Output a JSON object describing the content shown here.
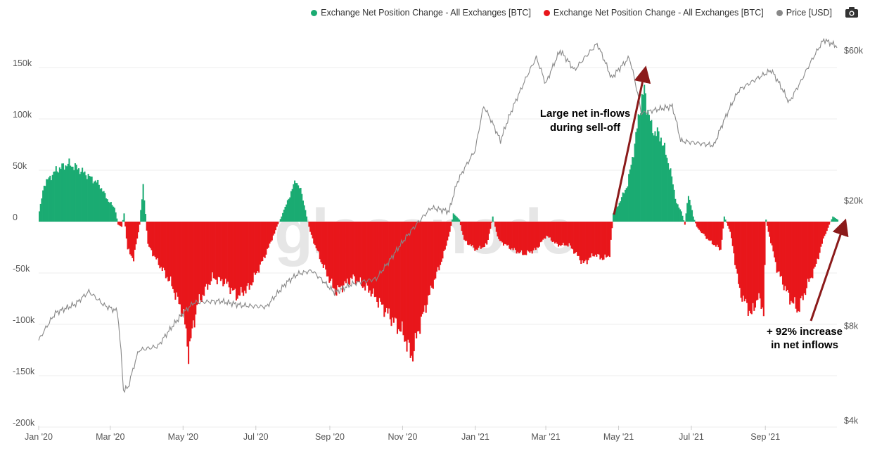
{
  "legend": {
    "items": [
      {
        "label": "Exchange Net Position Change - All Exchanges [BTC]",
        "color": "#1aab72"
      },
      {
        "label": "Exchange Net Position Change - All Exchanges [BTC]",
        "color": "#e8161b"
      },
      {
        "label": "Price [USD]",
        "color": "#888888"
      }
    ]
  },
  "watermark": "glassnode",
  "annotations": {
    "inflows_line1": "Large net in-flows",
    "inflows_line2": "during sell-off",
    "increase_line1": "+ 92% increase",
    "increase_line2": "in net inflows"
  },
  "colors": {
    "positive": "#1aab72",
    "negative": "#e8161b",
    "price": "#888888",
    "arrow": "#8b1a1a"
  },
  "chart_data": {
    "type": "bar",
    "title": "",
    "xlabel": "",
    "ylabel": "",
    "ylim": [
      -200000,
      175000
    ],
    "y2lim_log": [
      4000,
      80000
    ],
    "x_start": "2020-01-01",
    "x_end": "2021-10-31",
    "y_ticks": [
      {
        "value": 150000,
        "label": "150k"
      },
      {
        "value": 100000,
        "label": "100k"
      },
      {
        "value": 50000,
        "label": "50k"
      },
      {
        "value": 0,
        "label": "0"
      },
      {
        "value": -50000,
        "label": "-50k"
      },
      {
        "value": -100000,
        "label": "-100k"
      },
      {
        "value": -150000,
        "label": "-150k"
      },
      {
        "value": -200000,
        "label": "-200k"
      }
    ],
    "y2_ticks": [
      {
        "value": 60000,
        "label": "$60k"
      },
      {
        "value": 20000,
        "label": "$20k"
      },
      {
        "value": 8000,
        "label": "$8k"
      },
      {
        "value": 4000,
        "label": "$4k"
      }
    ],
    "x_ticks": [
      {
        "date": "2020-01-01",
        "label": "Jan '20"
      },
      {
        "date": "2020-03-01",
        "label": "Mar '20"
      },
      {
        "date": "2020-05-01",
        "label": "May '20"
      },
      {
        "date": "2020-07-01",
        "label": "Jul '20"
      },
      {
        "date": "2020-09-01",
        "label": "Sep '20"
      },
      {
        "date": "2020-11-01",
        "label": "Nov '20"
      },
      {
        "date": "2021-01-01",
        "label": "Jan '21"
      },
      {
        "date": "2021-03-01",
        "label": "Mar '21"
      },
      {
        "date": "2021-05-01",
        "label": "May '21"
      },
      {
        "date": "2021-07-01",
        "label": "Jul '21"
      },
      {
        "date": "2021-09-01",
        "label": "Sep '21"
      }
    ],
    "series": [
      {
        "name": "Exchange Net Position Change - All Exchanges [BTC]",
        "unit": "BTC",
        "anchors": [
          [
            "2020-01-01",
            10000
          ],
          [
            "2020-01-05",
            40000
          ],
          [
            "2020-01-15",
            55000
          ],
          [
            "2020-01-25",
            62000
          ],
          [
            "2020-02-01",
            58000
          ],
          [
            "2020-02-10",
            50000
          ],
          [
            "2020-02-20",
            40000
          ],
          [
            "2020-02-28",
            22000
          ],
          [
            "2020-03-04",
            15000
          ],
          [
            "2020-03-07",
            -3000
          ],
          [
            "2020-03-10",
            -5000
          ],
          [
            "2020-03-12",
            8000
          ],
          [
            "2020-03-15",
            -30000
          ],
          [
            "2020-03-20",
            -40000
          ],
          [
            "2020-03-25",
            -3000
          ],
          [
            "2020-03-28",
            40000
          ],
          [
            "2020-04-01",
            -25000
          ],
          [
            "2020-04-10",
            -45000
          ],
          [
            "2020-04-20",
            -65000
          ],
          [
            "2020-05-01",
            -100000
          ],
          [
            "2020-05-05",
            -140000
          ],
          [
            "2020-05-12",
            -90000
          ],
          [
            "2020-05-25",
            -60000
          ],
          [
            "2020-06-05",
            -65000
          ],
          [
            "2020-06-15",
            -80000
          ],
          [
            "2020-06-25",
            -70000
          ],
          [
            "2020-07-05",
            -45000
          ],
          [
            "2020-07-12",
            -25000
          ],
          [
            "2020-07-18",
            -5000
          ],
          [
            "2020-07-22",
            5000
          ],
          [
            "2020-07-28",
            25000
          ],
          [
            "2020-08-03",
            45000
          ],
          [
            "2020-08-08",
            30000
          ],
          [
            "2020-08-12",
            5000
          ],
          [
            "2020-08-16",
            -15000
          ],
          [
            "2020-08-25",
            -45000
          ],
          [
            "2020-09-05",
            -75000
          ],
          [
            "2020-09-20",
            -60000
          ],
          [
            "2020-10-05",
            -75000
          ],
          [
            "2020-10-20",
            -100000
          ],
          [
            "2020-11-01",
            -120000
          ],
          [
            "2020-11-08",
            -145000
          ],
          [
            "2020-11-15",
            -110000
          ],
          [
            "2020-11-25",
            -70000
          ],
          [
            "2020-12-05",
            -35000
          ],
          [
            "2020-12-10",
            -10000
          ],
          [
            "2020-12-13",
            8000
          ],
          [
            "2020-12-18",
            2000
          ],
          [
            "2020-12-22",
            -20000
          ],
          [
            "2021-01-01",
            -30000
          ],
          [
            "2021-01-10",
            -25000
          ],
          [
            "2021-01-15",
            5000
          ],
          [
            "2021-01-20",
            -20000
          ],
          [
            "2021-02-01",
            -30000
          ],
          [
            "2021-02-10",
            -35000
          ],
          [
            "2021-02-20",
            -30000
          ],
          [
            "2021-03-01",
            -15000
          ],
          [
            "2021-03-10",
            -25000
          ],
          [
            "2021-03-20",
            -25000
          ],
          [
            "2021-04-01",
            -45000
          ],
          [
            "2021-04-10",
            -35000
          ],
          [
            "2021-04-18",
            -40000
          ],
          [
            "2021-04-23",
            -35000
          ],
          [
            "2021-04-26",
            8000
          ],
          [
            "2021-05-01",
            20000
          ],
          [
            "2021-05-08",
            40000
          ],
          [
            "2021-05-15",
            90000
          ],
          [
            "2021-05-18",
            120000
          ],
          [
            "2021-05-22",
            140000
          ],
          [
            "2021-05-28",
            100000
          ],
          [
            "2021-06-05",
            90000
          ],
          [
            "2021-06-12",
            60000
          ],
          [
            "2021-06-18",
            20000
          ],
          [
            "2021-06-22",
            10000
          ],
          [
            "2021-06-25",
            -3000
          ],
          [
            "2021-06-28",
            30000
          ],
          [
            "2021-07-02",
            5000
          ],
          [
            "2021-07-05",
            -5000
          ],
          [
            "2021-07-15",
            -20000
          ],
          [
            "2021-07-25",
            -30000
          ],
          [
            "2021-07-28",
            5000
          ],
          [
            "2021-08-02",
            -10000
          ],
          [
            "2021-08-10",
            -75000
          ],
          [
            "2021-08-20",
            -100000
          ],
          [
            "2021-08-25",
            -80000
          ],
          [
            "2021-08-30",
            -95000
          ],
          [
            "2021-09-01",
            2000
          ],
          [
            "2021-09-03",
            -10000
          ],
          [
            "2021-09-10",
            -50000
          ],
          [
            "2021-09-20",
            -80000
          ],
          [
            "2021-09-28",
            -95000
          ],
          [
            "2021-10-05",
            -70000
          ],
          [
            "2021-10-12",
            -50000
          ],
          [
            "2021-10-20",
            -15000
          ],
          [
            "2021-10-24",
            -3000
          ],
          [
            "2021-10-27",
            5000
          ],
          [
            "2021-10-31",
            2000
          ]
        ]
      },
      {
        "name": "Price [USD]",
        "unit": "USD",
        "anchors": [
          [
            "2020-01-01",
            7200
          ],
          [
            "2020-01-15",
            8800
          ],
          [
            "2020-02-01",
            9400
          ],
          [
            "2020-02-12",
            10300
          ],
          [
            "2020-02-25",
            9300
          ],
          [
            "2020-03-07",
            8900
          ],
          [
            "2020-03-12",
            5000
          ],
          [
            "2020-03-16",
            5100
          ],
          [
            "2020-03-25",
            6700
          ],
          [
            "2020-04-10",
            6900
          ],
          [
            "2020-04-30",
            8700
          ],
          [
            "2020-05-10",
            9500
          ],
          [
            "2020-06-01",
            9600
          ],
          [
            "2020-06-20",
            9300
          ],
          [
            "2020-07-10",
            9200
          ],
          [
            "2020-07-27",
            11000
          ],
          [
            "2020-08-05",
            11700
          ],
          [
            "2020-08-17",
            12000
          ],
          [
            "2020-09-05",
            10200
          ],
          [
            "2020-09-20",
            10900
          ],
          [
            "2020-10-10",
            11300
          ],
          [
            "2020-10-21",
            12900
          ],
          [
            "2020-11-05",
            15500
          ],
          [
            "2020-11-25",
            19000
          ],
          [
            "2020-12-10",
            18500
          ],
          [
            "2020-12-17",
            23000
          ],
          [
            "2021-01-01",
            29000
          ],
          [
            "2021-01-08",
            40000
          ],
          [
            "2021-01-22",
            31000
          ],
          [
            "2021-02-08",
            45000
          ],
          [
            "2021-02-21",
            57000
          ],
          [
            "2021-03-01",
            47000
          ],
          [
            "2021-03-13",
            60000
          ],
          [
            "2021-03-25",
            52000
          ],
          [
            "2021-04-13",
            63000
          ],
          [
            "2021-04-25",
            49000
          ],
          [
            "2021-05-10",
            57000
          ],
          [
            "2021-05-20",
            38000
          ],
          [
            "2021-06-15",
            40000
          ],
          [
            "2021-06-22",
            31000
          ],
          [
            "2021-07-20",
            30000
          ],
          [
            "2021-08-10",
            45000
          ],
          [
            "2021-09-06",
            52000
          ],
          [
            "2021-09-21",
            41000
          ],
          [
            "2021-10-01",
            48000
          ],
          [
            "2021-10-20",
            65000
          ],
          [
            "2021-10-31",
            62000
          ]
        ]
      }
    ]
  }
}
